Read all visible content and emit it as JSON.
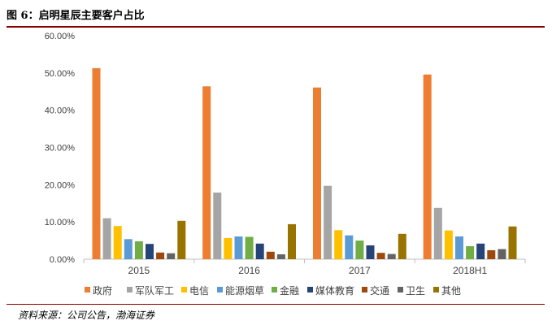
{
  "header": {
    "title": "图 6：启明星辰主要客户占比"
  },
  "footer": {
    "source": "资料来源：公司公告，渤海证券"
  },
  "chart_data": {
    "type": "bar",
    "categories": [
      "2015",
      "2016",
      "2017",
      "2018H1"
    ],
    "ylim": [
      0,
      60
    ],
    "yticks": [
      "0.00%",
      "10.00%",
      "20.00%",
      "30.00%",
      "40.00%",
      "50.00%",
      "60.00%"
    ],
    "grid": false,
    "legend_position": "bottom",
    "series": [
      {
        "name": "政府",
        "color": "#ED7D31",
        "values": [
          51.3,
          46.4,
          46.1,
          49.6
        ]
      },
      {
        "name": "军队军工",
        "color": "#A5A5A5",
        "values": [
          11.0,
          17.9,
          19.7,
          13.8
        ]
      },
      {
        "name": "电信",
        "color": "#FFC000",
        "values": [
          8.9,
          5.7,
          7.8,
          7.7
        ]
      },
      {
        "name": "能源烟草",
        "color": "#5B9BD5",
        "values": [
          5.4,
          6.1,
          6.4,
          6.1
        ]
      },
      {
        "name": "金融",
        "color": "#70AD47",
        "values": [
          4.8,
          6.0,
          5.0,
          3.5
        ]
      },
      {
        "name": "媒体教育",
        "color": "#264478",
        "values": [
          4.1,
          4.2,
          3.7,
          4.2
        ]
      },
      {
        "name": "交通",
        "color": "#9E480E",
        "values": [
          1.8,
          2.0,
          1.7,
          2.4
        ]
      },
      {
        "name": "卫生",
        "color": "#636363",
        "values": [
          1.6,
          1.3,
          1.4,
          2.7
        ]
      },
      {
        "name": "其他",
        "color": "#997300",
        "values": [
          10.3,
          9.4,
          6.8,
          8.8
        ]
      }
    ]
  }
}
